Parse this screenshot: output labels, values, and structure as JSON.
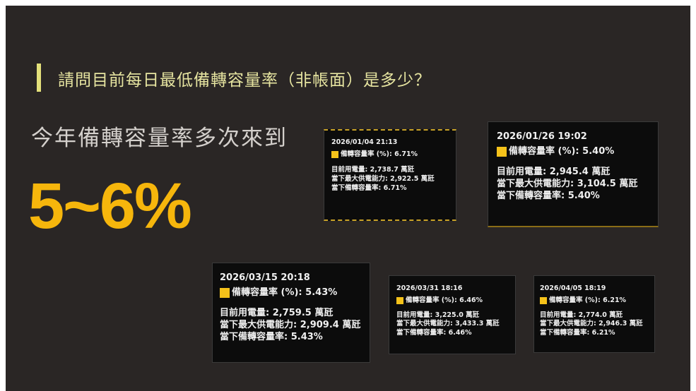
{
  "heading": "請問目前每日最低備轉容量率（非帳面）是多少？",
  "subheading": "今年備轉容量率多次來到",
  "highlight": "5~6%",
  "cards": [
    {
      "time": "2026/01/04 21:13",
      "legend": "備轉容量率 (%): 6.71%",
      "lines": [
        "目前用電量: 2,738.7 萬瓩",
        "當下最大供電能力: 2,922.5 萬瓩",
        "當下備轉容量率: 6.71%"
      ]
    },
    {
      "time": "2026/01/26 19:02",
      "legend": "備轉容量率 (%): 5.40%",
      "lines": [
        "目前用電量: 2,945.4 萬瓩",
        "當下最大供電能力: 3,104.5 萬瓩",
        "當下備轉容量率: 5.40%"
      ]
    },
    {
      "time": "2026/03/15 20:18",
      "legend": "備轉容量率 (%): 5.43%",
      "lines": [
        "目前用電量: 2,759.5 萬瓩",
        "當下最大供電能力: 2,909.4 萬瓩",
        "當下備轉容量率: 5.43%"
      ]
    },
    {
      "time": "2026/03/31 18:16",
      "legend": "備轉容量率 (%): 6.46%",
      "lines": [
        "目前用電量: 3,225.0 萬瓩",
        "當下最大供電能力: 3,433.3 萬瓩",
        "當下備轉容量率: 6.46%"
      ]
    },
    {
      "time": "2026/04/05 18:19",
      "legend": "備轉容量率 (%): 6.21%",
      "lines": [
        "目前用電量: 2,774.0 萬瓩",
        "當下最大供電能力: 2,946.3 萬瓩",
        "當下備轉容量率: 6.21%"
      ]
    }
  ]
}
